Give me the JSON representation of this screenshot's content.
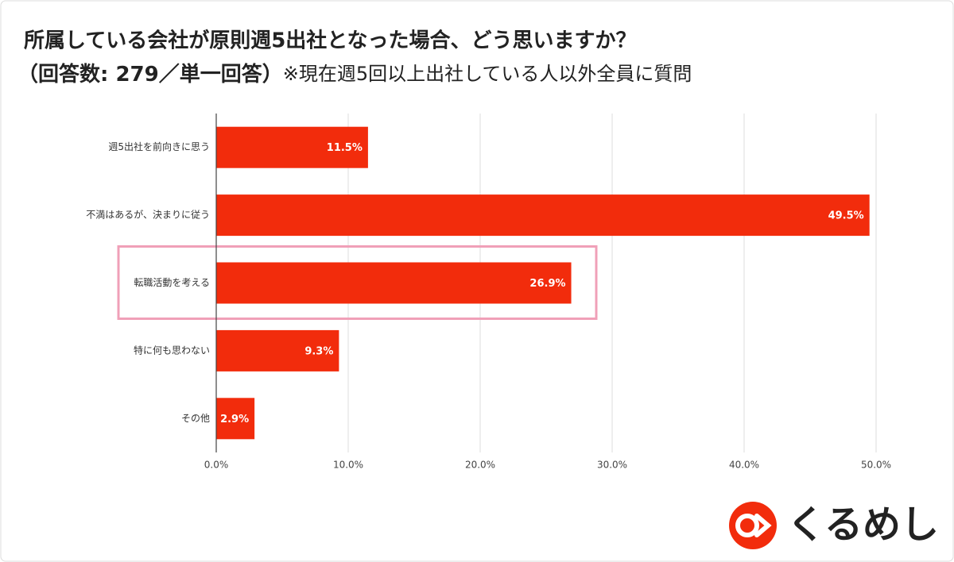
{
  "chart_data": {
    "type": "hbar",
    "title": "所属している会社が原則週5出社となった場合、どう思いますか？",
    "subtitle": "（回答数: 279／単一回答）",
    "note": "※現在週5回以上出社している人以外全員に質問",
    "categories": [
      "週5出社を前向きに思う",
      "不満はあるが、決まりに従う",
      "転職活動を考える",
      "特に何も思わない",
      "その他"
    ],
    "values": [
      11.5,
      49.5,
      26.9,
      9.3,
      2.9
    ],
    "value_labels": [
      "11.5%",
      "49.5%",
      "26.9%",
      "9.3%",
      "2.9%"
    ],
    "color": "#f22c0c",
    "xlim": [
      0,
      50
    ],
    "xticks": [
      {
        "value": 0,
        "label": "0.0%"
      },
      {
        "value": 10,
        "label": "10.0%"
      },
      {
        "value": 20,
        "label": "20.0%"
      },
      {
        "value": 30,
        "label": "30.0%"
      },
      {
        "value": 40,
        "label": "40.0%"
      },
      {
        "value": 50,
        "label": "50.0%"
      }
    ],
    "grid": true,
    "highlight_index": 2,
    "brand": "くるめし"
  }
}
